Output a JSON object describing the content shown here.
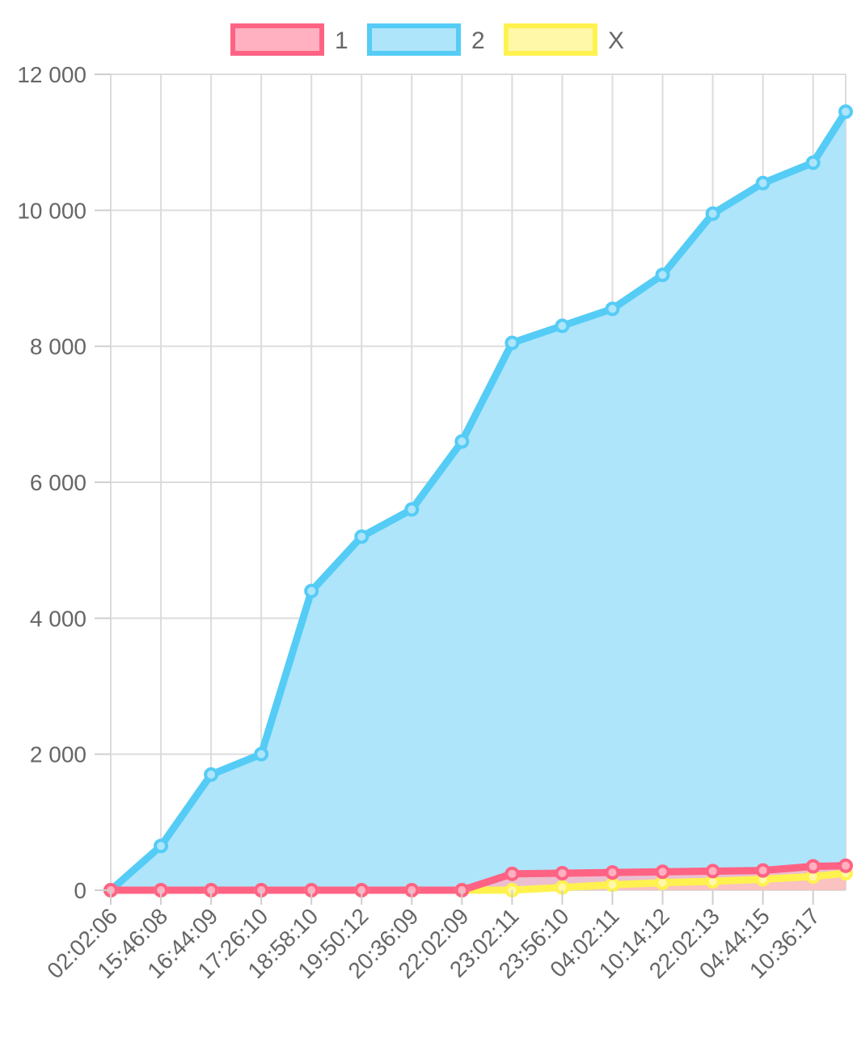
{
  "chart_data": {
    "type": "area",
    "title": "",
    "xlabel": "",
    "ylabel": "",
    "grid": true,
    "legend_position": "top",
    "ylim": [
      0,
      12000
    ],
    "y_ticks": [
      "0",
      "2 000",
      "4 000",
      "6 000",
      "8 000",
      "10 000",
      "12 000"
    ],
    "categories": [
      "02:02:06",
      "15:46:08",
      "16:44:09",
      "17:26:10",
      "18:58:10",
      "19:50:12",
      "20:36:09",
      "22:02:09",
      "23:02:11",
      "23:56:10",
      "04:02:11",
      "10:14:12",
      "22:02:13",
      "04:44:15",
      "10:36:17"
    ],
    "series": [
      {
        "name": "1",
        "line_color": "#ff6384",
        "fill_color": "#ffb1c1",
        "values": [
          0,
          0,
          0,
          0,
          0,
          0,
          0,
          0,
          240,
          250,
          260,
          270,
          280,
          290,
          350
        ],
        "tail": 360
      },
      {
        "name": "2",
        "line_color": "#55ccf6",
        "fill_color": "#aee5fb",
        "values": [
          0,
          650,
          1700,
          2000,
          4400,
          5200,
          5600,
          6600,
          8050,
          8300,
          8550,
          9050,
          9950,
          10400,
          10700
        ],
        "tail": 11450
      },
      {
        "name": "X",
        "line_color": "#fff24f",
        "fill_color": "#fff8a8",
        "values": [
          0,
          0,
          0,
          0,
          0,
          0,
          0,
          0,
          0,
          40,
          80,
          110,
          130,
          160,
          200
        ],
        "tail": 250
      }
    ]
  }
}
